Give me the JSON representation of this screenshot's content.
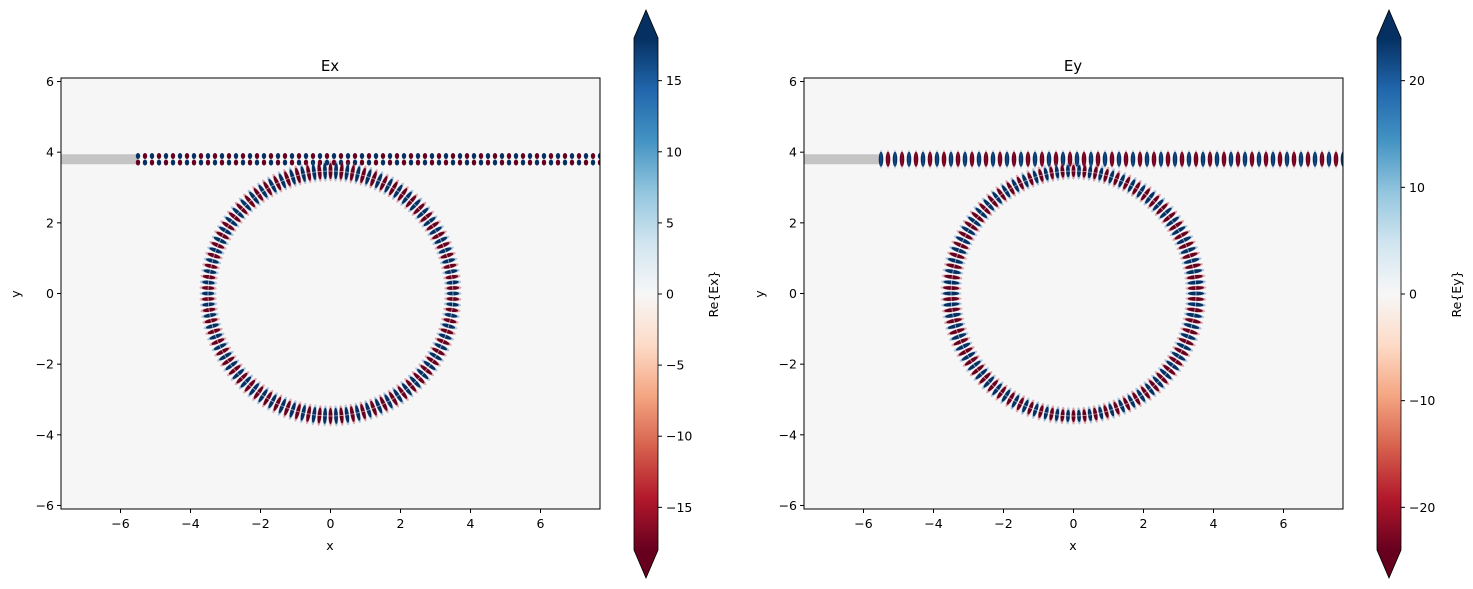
{
  "chart_data": [
    {
      "type": "heatmap",
      "title": "Ex",
      "xlabel": "x",
      "ylabel": "y",
      "xlim": [
        -7.7,
        7.7
      ],
      "ylim": [
        -6.1,
        6.1
      ],
      "xticks": [
        -6,
        -4,
        -2,
        0,
        2,
        4,
        6
      ],
      "yticks": [
        -6,
        -4,
        -2,
        0,
        2,
        4,
        6
      ],
      "xtick_labels": [
        "−6",
        "−4",
        "−2",
        "0",
        "2",
        "4",
        "6"
      ],
      "ytick_labels": [
        "−6",
        "−4",
        "−2",
        "0",
        "2",
        "4",
        "6"
      ],
      "waveguide": {
        "y": 3.8,
        "source_x": -5.5
      },
      "ring": {
        "center": [
          0,
          0
        ],
        "radius": 3.5
      },
      "field_component": "x",
      "colorbar": {
        "label": "Re{Ex}",
        "colormap": "RdBu",
        "range": [
          -18,
          18
        ],
        "extend": "both",
        "ticks": [
          -15,
          -10,
          -5,
          0,
          5,
          10,
          15
        ],
        "tick_labels": [
          "−15",
          "−10",
          "−5",
          "0",
          "5",
          "10",
          "15"
        ]
      }
    },
    {
      "type": "heatmap",
      "title": "Ey",
      "xlabel": "x",
      "ylabel": "y",
      "xlim": [
        -7.7,
        7.7
      ],
      "ylim": [
        -6.1,
        6.1
      ],
      "xticks": [
        -6,
        -4,
        -2,
        0,
        2,
        4,
        6
      ],
      "yticks": [
        -6,
        -4,
        -2,
        0,
        2,
        4,
        6
      ],
      "xtick_labels": [
        "−6",
        "−4",
        "−2",
        "0",
        "2",
        "4",
        "6"
      ],
      "ytick_labels": [
        "−6",
        "−4",
        "−2",
        "0",
        "2",
        "4",
        "6"
      ],
      "waveguide": {
        "y": 3.8,
        "source_x": -5.5
      },
      "ring": {
        "center": [
          0,
          0
        ],
        "radius": 3.5
      },
      "field_component": "y",
      "colorbar": {
        "label": "Re{Ey}",
        "colormap": "RdBu",
        "range": [
          -24,
          24
        ],
        "extend": "both",
        "ticks": [
          -20,
          -10,
          0,
          10,
          20
        ],
        "tick_labels": [
          "−20",
          "−10",
          "0",
          "10",
          "20"
        ]
      }
    }
  ]
}
